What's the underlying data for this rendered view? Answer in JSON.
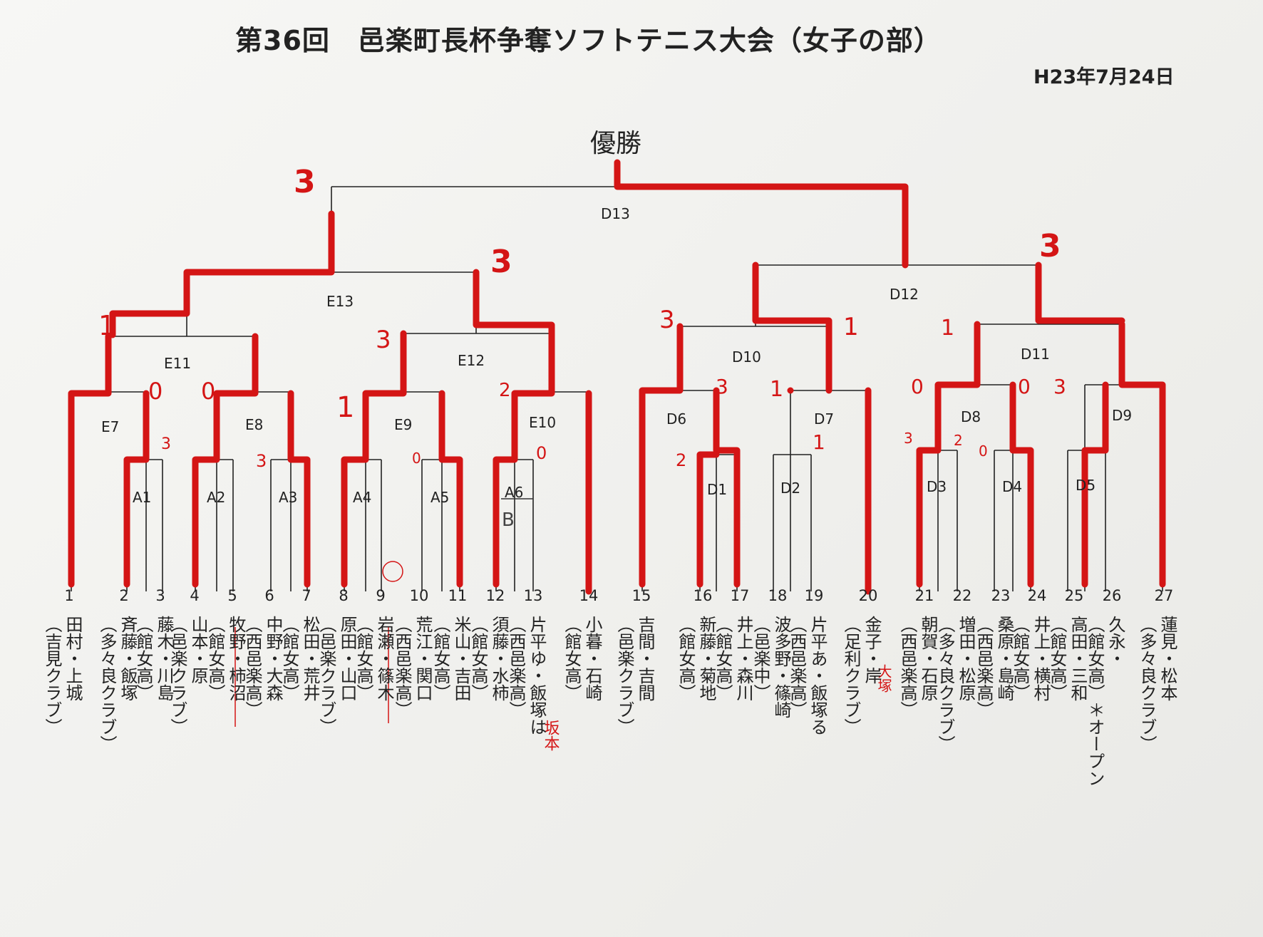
{
  "title": "第36回　邑楽町長杯争奪ソフトテニス大会（女子の部）",
  "date": "H23年7月24日",
  "champion_label": "優勝",
  "colors": {
    "ink": "#222222",
    "marker": "#d41515"
  },
  "matches": [
    "A1",
    "A2",
    "A3",
    "A4",
    "A5",
    "A6",
    "E7",
    "E8",
    "E9",
    "E10",
    "E11",
    "E12",
    "E13",
    "D1",
    "D2",
    "D3",
    "D4",
    "D5",
    "D6",
    "D7",
    "D8",
    "D9",
    "D10",
    "D11",
    "D12",
    "D13"
  ],
  "score_marks": [
    "3",
    "3",
    "3",
    "1",
    "3",
    "3",
    "1",
    "1",
    "0",
    "0",
    "3",
    "3",
    "1",
    "3",
    "1",
    "2",
    "1",
    "0",
    "0",
    "0",
    "3",
    "3",
    "0",
    "2",
    "0",
    "2"
  ],
  "handwritten_notes": [
    "B",
    "坂本",
    "大塚"
  ],
  "players": [
    {
      "no": "1",
      "team": "田村・上城",
      "club": "（吉見クラブ）"
    },
    {
      "no": "2",
      "team": "斉藤・飯塚",
      "club": "（多々良クラブ）"
    },
    {
      "no": "3",
      "team": "藤木・川島",
      "club": "（館女高）"
    },
    {
      "no": "4",
      "team": "山本・原",
      "club": "（邑楽クラブ）"
    },
    {
      "no": "5",
      "team": "牧野・柿沼",
      "club": "（館女高）"
    },
    {
      "no": "6",
      "team": "中野・大森",
      "club": "（西邑楽高）"
    },
    {
      "no": "7",
      "team": "松田・荒井",
      "club": "（館女高）"
    },
    {
      "no": "8",
      "team": "原田・山口",
      "club": "（邑楽クラブ）"
    },
    {
      "no": "9",
      "team": "岩瀬・篠木",
      "club": "（館女高）"
    },
    {
      "no": "10",
      "team": "荒江・関口",
      "club": "（西邑楽高）"
    },
    {
      "no": "11",
      "team": "米山・吉田",
      "club": "（館女高）"
    },
    {
      "no": "12",
      "team": "須藤・水柿",
      "club": "（館女高）"
    },
    {
      "no": "13",
      "team": "片平ゆ・飯塚は",
      "club": "（西邑楽高）"
    },
    {
      "no": "14",
      "team": "小暮・石崎",
      "club": "（館女高）"
    },
    {
      "no": "15",
      "team": "吉間・吉間",
      "club": "（邑楽クラブ）"
    },
    {
      "no": "16",
      "team": "新藤・菊地",
      "club": "（館女高）"
    },
    {
      "no": "17",
      "team": "井上・森川",
      "club": "（館女高）"
    },
    {
      "no": "18",
      "team": "波多野・篠崎",
      "club": "（邑楽中）"
    },
    {
      "no": "19",
      "team": "片平あ・飯塚る",
      "club": "（西邑楽高）"
    },
    {
      "no": "20",
      "team": "金子・岸",
      "club": "（足利クラブ）"
    },
    {
      "no": "21",
      "team": "朝賀・石原",
      "club": "（西邑楽高）"
    },
    {
      "no": "22",
      "team": "増田・松原",
      "club": "（多々良クラブ）"
    },
    {
      "no": "23",
      "team": "桑原・島崎",
      "club": "（西邑楽高）"
    },
    {
      "no": "24",
      "team": "井上・横村",
      "club": "（館女高）"
    },
    {
      "no": "25",
      "team": "高田・三和",
      "club": "（館女高）"
    },
    {
      "no": "26",
      "team": "久永・",
      "club": "（館女高）＊オープン"
    },
    {
      "no": "27",
      "team": "蓮見・松本",
      "club": "（多々良クラブ）"
    }
  ]
}
